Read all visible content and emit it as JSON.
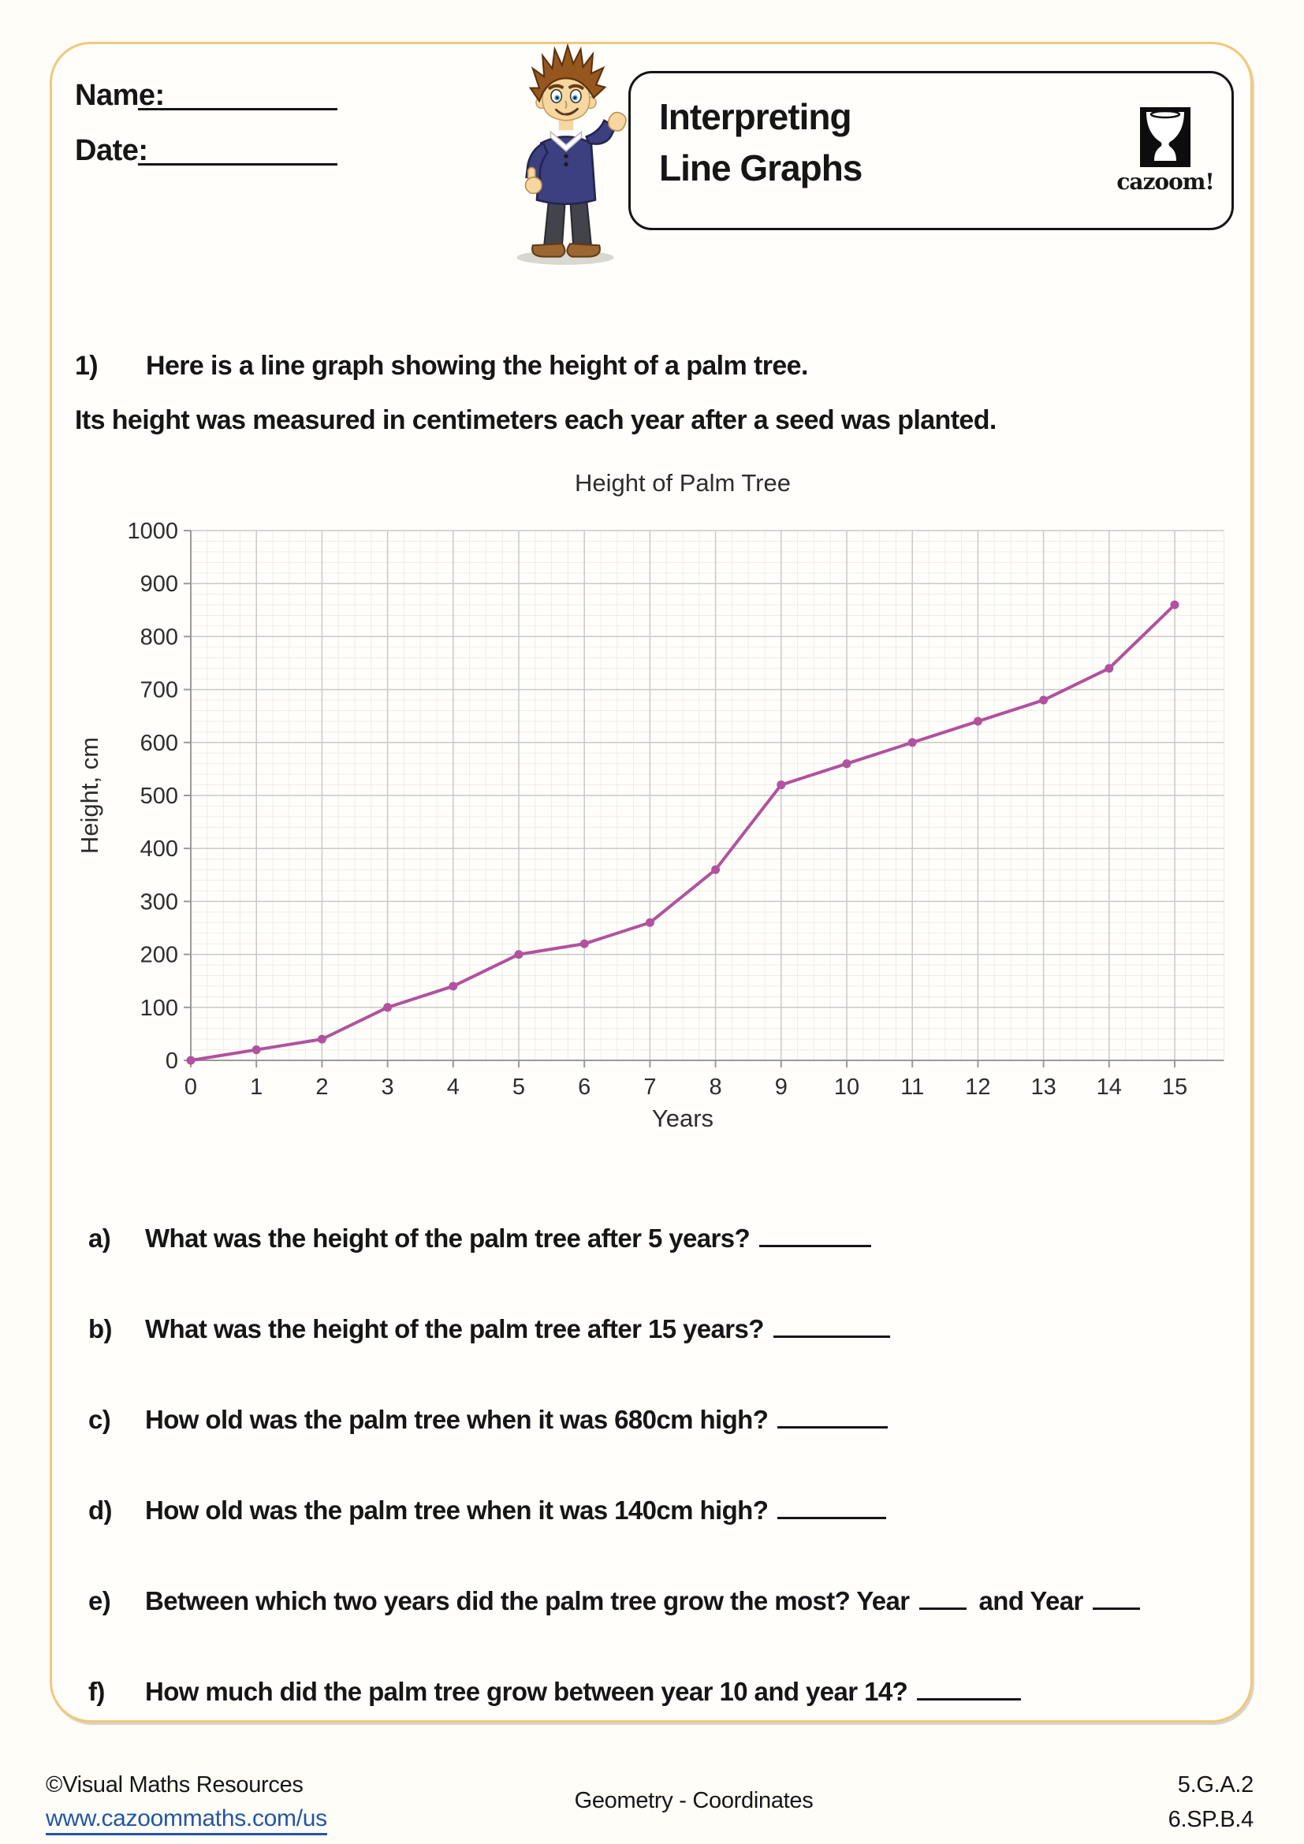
{
  "header": {
    "name_label": "Name:",
    "date_label": "Date:",
    "worksheet_title_line1": "Interpreting",
    "worksheet_title_line2": "Line Graphs",
    "logo_text": "cazoom!"
  },
  "question_intro": {
    "number": "1)",
    "line1": "Here is a line graph showing the height of a palm tree.",
    "line2": "Its height was measured in centimeters each year after a seed was planted."
  },
  "chart_data": {
    "type": "line",
    "title": "Height of Palm Tree",
    "xlabel": "Years",
    "ylabel": "Height, cm",
    "x": [
      0,
      1,
      2,
      3,
      4,
      5,
      6,
      7,
      8,
      9,
      10,
      11,
      12,
      13,
      14,
      15
    ],
    "values": [
      0,
      20,
      40,
      100,
      140,
      200,
      220,
      260,
      360,
      520,
      560,
      600,
      640,
      680,
      740,
      860
    ],
    "xlim": [
      0,
      15
    ],
    "ylim": [
      0,
      1000
    ],
    "x_ticks": [
      0,
      1,
      2,
      3,
      4,
      5,
      6,
      7,
      8,
      9,
      10,
      11,
      12,
      13,
      14,
      15
    ],
    "y_ticks": [
      0,
      100,
      200,
      300,
      400,
      500,
      600,
      700,
      800,
      900,
      1000
    ],
    "grid": "major+minor",
    "minor_x_per_major": 4,
    "minor_y_per_major": 5,
    "legend": "none",
    "line_color": "#b1529f",
    "marker": "circle",
    "major_grid_color": "#c9c9c9",
    "minor_grid_color": "#ededea",
    "axis_color": "#9a9a9a",
    "tick_label_color": "#2d2d2d"
  },
  "questions": [
    {
      "label": "a)",
      "text": "What was the height of the palm tree after 5 years?"
    },
    {
      "label": "b)",
      "text": "What was the height of the palm tree after 15 years?"
    },
    {
      "label": "c)",
      "text": "How old was the palm tree when it was 680cm high?"
    },
    {
      "label": "d)",
      "text": "How old was the palm tree when it was 140cm high?"
    },
    {
      "label": "e)",
      "text": "Between which two years did the palm tree grow the most? Year",
      "mid_text": "and Year"
    },
    {
      "label": "f)",
      "text": "How much did the palm tree grow between year 10 and year 14?"
    }
  ],
  "footer": {
    "copyright": "©Visual Maths Resources",
    "website": "www.cazoommaths.com/us",
    "category": "Geometry - Coordinates",
    "standard_1": "5.G.A.2",
    "standard_2": "6.SP.B.4"
  },
  "colors": {
    "frame_border": "#f2c87a",
    "series_line": "#b1529f",
    "link_blue": "#2456a4"
  }
}
